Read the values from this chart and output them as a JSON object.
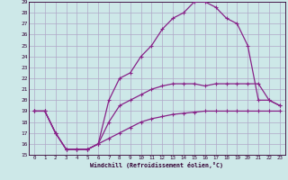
{
  "xlabel": "Windchill (Refroidissement éolien,°C)",
  "bg_color": "#cde8e8",
  "grid_color": "#b0a8c8",
  "line_color": "#882288",
  "xlim": [
    -0.5,
    23.5
  ],
  "ylim": [
    15,
    29
  ],
  "xticks": [
    0,
    1,
    2,
    3,
    4,
    5,
    6,
    7,
    8,
    9,
    10,
    11,
    12,
    13,
    14,
    15,
    16,
    17,
    18,
    19,
    20,
    21,
    22,
    23
  ],
  "yticks": [
    15,
    16,
    17,
    18,
    19,
    20,
    21,
    22,
    23,
    24,
    25,
    26,
    27,
    28,
    29
  ],
  "line1_x": [
    0,
    1,
    2,
    3,
    4,
    5,
    6,
    7,
    8,
    9,
    10,
    11,
    12,
    13,
    14,
    15,
    16,
    17,
    18,
    19,
    20,
    21,
    22,
    23
  ],
  "line1_y": [
    19.0,
    19.0,
    17.0,
    15.5,
    15.5,
    15.5,
    16.0,
    20.0,
    22.0,
    22.5,
    24.0,
    25.0,
    26.5,
    27.5,
    28.0,
    29.0,
    29.0,
    28.5,
    27.5,
    27.0,
    25.0,
    20.0,
    20.0,
    19.5
  ],
  "line2_x": [
    0,
    1,
    2,
    3,
    4,
    5,
    6,
    7,
    8,
    9,
    10,
    11,
    12,
    13,
    14,
    15,
    16,
    17,
    18,
    19,
    20,
    21,
    22,
    23
  ],
  "line2_y": [
    19.0,
    19.0,
    17.0,
    15.5,
    15.5,
    15.5,
    16.0,
    18.0,
    19.5,
    20.0,
    20.5,
    21.0,
    21.3,
    21.5,
    21.5,
    21.5,
    21.3,
    21.5,
    21.5,
    21.5,
    21.5,
    21.5,
    20.0,
    19.5
  ],
  "line3_x": [
    0,
    1,
    2,
    3,
    4,
    5,
    6,
    7,
    8,
    9,
    10,
    11,
    12,
    13,
    14,
    15,
    16,
    17,
    18,
    19,
    20,
    21,
    22,
    23
  ],
  "line3_y": [
    19.0,
    19.0,
    17.0,
    15.5,
    15.5,
    15.5,
    16.0,
    16.5,
    17.0,
    17.5,
    18.0,
    18.3,
    18.5,
    18.7,
    18.8,
    18.9,
    19.0,
    19.0,
    19.0,
    19.0,
    19.0,
    19.0,
    19.0,
    19.0
  ]
}
